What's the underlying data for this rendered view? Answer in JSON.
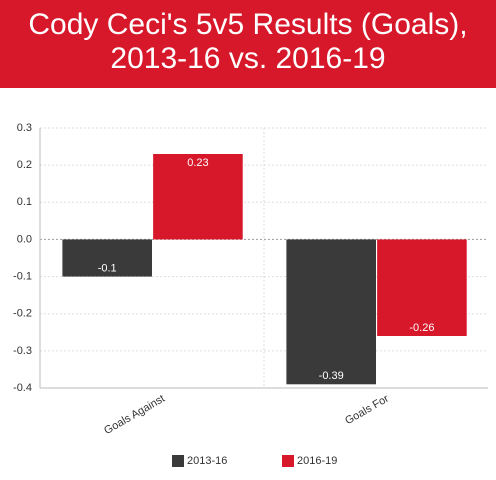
{
  "chart_data": {
    "type": "bar",
    "title": [
      "Cody Ceci's 5v5 Results (Goals),",
      "2013-16 vs. 2016-19"
    ],
    "categories": [
      "Goals Against",
      "Goals For"
    ],
    "series": [
      {
        "name": "2013-16",
        "color": "#3a3a3a",
        "values": [
          -0.1,
          -0.39
        ]
      },
      {
        "name": "2016-19",
        "color": "#d7182a",
        "values": [
          0.23,
          -0.26
        ]
      }
    ],
    "ylim": [
      -0.4,
      0.3
    ],
    "yticks": [
      -0.4,
      -0.3,
      -0.2,
      -0.1,
      {
        "value": 0,
        "label": "0.0"
      },
      0.1,
      0.2,
      0.3
    ],
    "grid": true,
    "legend": "bottom"
  }
}
